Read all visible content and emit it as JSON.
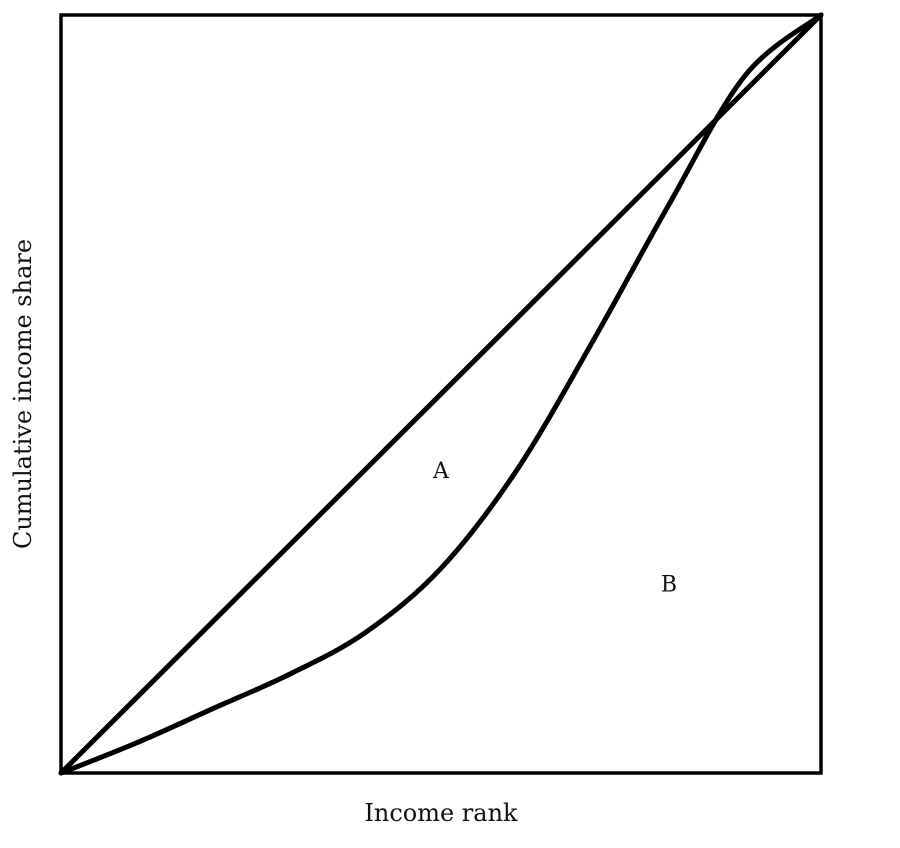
{
  "chart_data": {
    "type": "line",
    "title": "",
    "xlabel": "Income rank",
    "ylabel": "Cumulative income share",
    "xlim": [
      0,
      1
    ],
    "ylim": [
      0,
      1
    ],
    "grid": false,
    "series": [
      {
        "x": [
          0,
          1
        ],
        "y": [
          0,
          1
        ]
      },
      {
        "x": [
          0,
          0.1,
          0.2,
          0.3,
          0.4,
          0.5,
          0.6,
          0.7,
          0.8,
          0.9,
          1.0
        ],
        "y": [
          0,
          0.04,
          0.085,
          0.13,
          0.185,
          0.27,
          0.4,
          0.57,
          0.75,
          0.92,
          1.0
        ]
      }
    ],
    "annotations": [
      {
        "text": "A",
        "x": 0.5,
        "y": 0.4
      },
      {
        "text": "B",
        "x": 0.8,
        "y": 0.25
      }
    ]
  },
  "colors": {
    "line": "#000000",
    "frame": "#000000",
    "background": "#ffffff"
  }
}
